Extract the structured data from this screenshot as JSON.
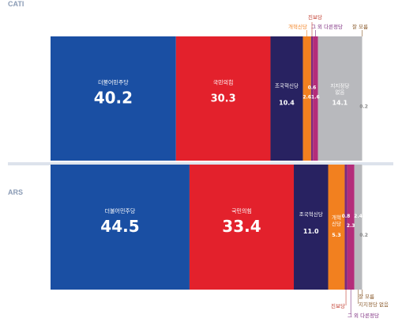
{
  "chart_data": {
    "type": "bar",
    "stacked": true,
    "orientation": "horizontal-100pct",
    "colors": {
      "democratic": "#1a4fa3",
      "ppp": "#e3212c",
      "rebuilding": "#282261",
      "reform": "#f2801f",
      "progressive": "#7b2a7e",
      "other_party": "#b42c7a",
      "no_support": "#b8b9bd",
      "dont_know": "#d9d9d9"
    },
    "categories": [
      "CATI",
      "ARS"
    ],
    "series": [
      {
        "name": "더불어민주당",
        "key": "democratic",
        "values": [
          40.2,
          44.5
        ]
      },
      {
        "name": "국민의힘",
        "key": "ppp",
        "values": [
          30.3,
          33.4
        ]
      },
      {
        "name": "조국혁신당",
        "key": "rebuilding",
        "values": [
          10.4,
          11.0
        ]
      },
      {
        "name": "개혁신당",
        "key": "reform",
        "values": [
          2.6,
          5.3
        ]
      },
      {
        "name": "진보당",
        "key": "progressive",
        "values": [
          0.6,
          0.8
        ]
      },
      {
        "name": "그 외 다른정당",
        "key": "other_party",
        "values": [
          1.6,
          2.3
        ]
      },
      {
        "name": "지지정당 없음",
        "key": "no_support",
        "values": [
          14.1,
          2.4
        ]
      },
      {
        "name": "잘 모름",
        "key": "dont_know",
        "values": [
          0.2,
          0.2
        ]
      }
    ],
    "value_labels": {
      "democratic": [
        "40.2",
        "44.5"
      ],
      "ppp": [
        "30.3",
        "33.4"
      ],
      "rebuilding": [
        "10.4",
        "11.0"
      ],
      "reform": [
        "2.6",
        "5.3"
      ],
      "progressive": [
        "0.6",
        "0.8"
      ],
      "other_party": [
        "1.6",
        "2.3"
      ],
      "no_support": [
        "14.1",
        "2.4"
      ],
      "dont_know": [
        "0.2",
        "0.2"
      ]
    },
    "inside_names": {
      "democratic": [
        "더불어민주당",
        "더불어민주당"
      ],
      "ppp": [
        "국민의힘",
        "국민의힘"
      ],
      "rebuilding": [
        "조국혁신당",
        "조국혁신당"
      ],
      "reform": [
        "",
        "개혁\n신당"
      ],
      "no_support": [
        "지지정당\n없음",
        ""
      ]
    },
    "external_labels": {
      "CATI_top": [
        "진보당",
        "개혁신당",
        "그 외 다른정당",
        "잘 모름"
      ],
      "ARS_bottom": [
        "잘 모름",
        "지지정당 없음",
        "진보당",
        "그 외 다른정당"
      ]
    }
  }
}
